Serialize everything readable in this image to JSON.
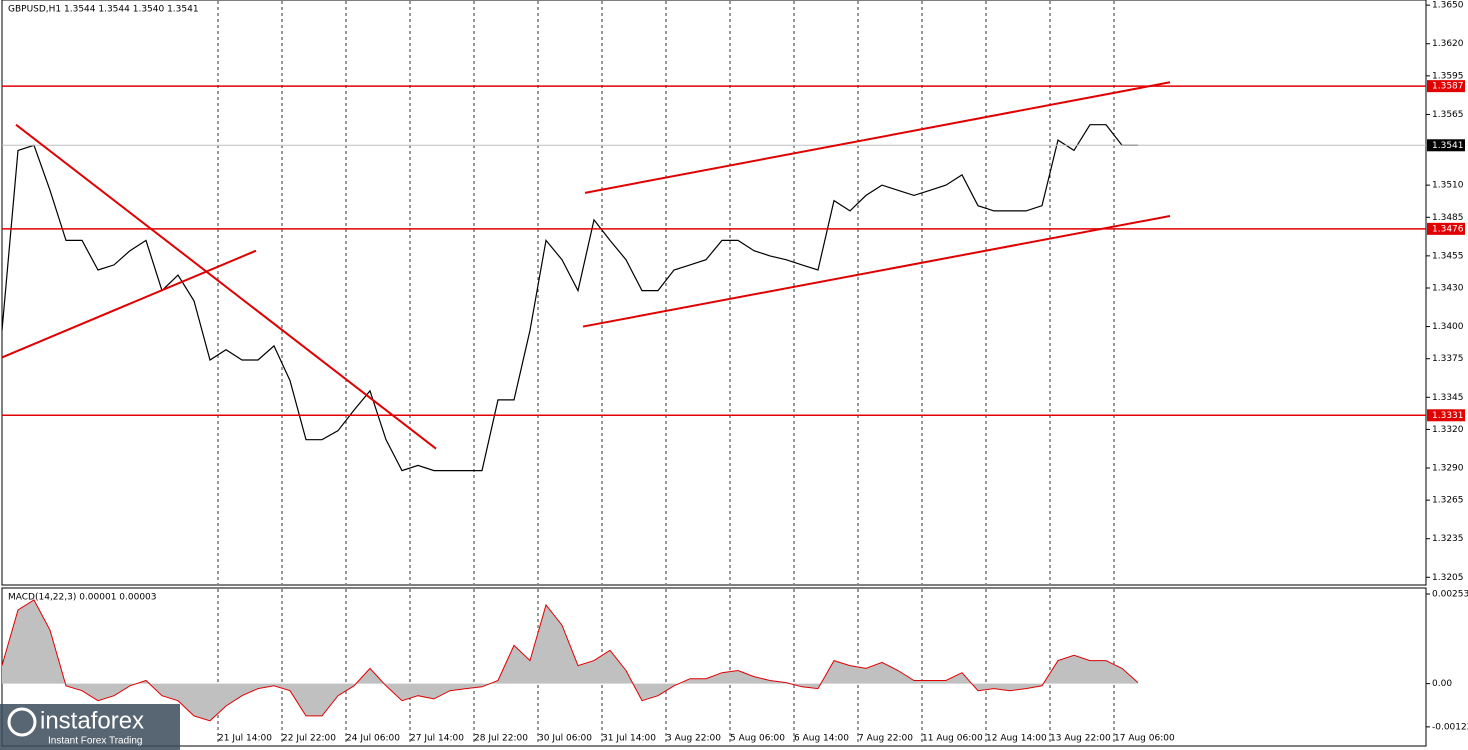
{
  "chart_data": [
    {
      "type": "line",
      "title": "GBPUSD,H1  1.3544 1.3544 1.3540 1.3541",
      "x": [
        0,
        8,
        16,
        24,
        32,
        40,
        48,
        56,
        64,
        72,
        80,
        88,
        96,
        104,
        112,
        120,
        128,
        136,
        144,
        152,
        160,
        168,
        176,
        184,
        192,
        200,
        208,
        216,
        224,
        232,
        240,
        248,
        256,
        264,
        272,
        280,
        288,
        296,
        304,
        312,
        320,
        328,
        336,
        344,
        352,
        360,
        368,
        376,
        384,
        392,
        400,
        408,
        416,
        424,
        432,
        440,
        448,
        456,
        464,
        472,
        480,
        488,
        496,
        504,
        512,
        520,
        528,
        536,
        544,
        552,
        560,
        568
      ],
      "series": [
        {
          "name": "GBPUSD",
          "color": "#000000",
          "values": [
            1.3397,
            1.3537,
            1.3541,
            1.3506,
            1.3467,
            1.3467,
            1.3444,
            1.3448,
            1.3459,
            1.3467,
            1.3428,
            1.344,
            1.342,
            1.3374,
            1.3382,
            1.3374,
            1.3374,
            1.3385,
            1.3358,
            1.3312,
            1.3312,
            1.3319,
            1.3335,
            1.335,
            1.3312,
            1.3288,
            1.3292,
            1.3288,
            1.3288,
            1.3288,
            1.3288,
            1.3343,
            1.3343,
            1.3397,
            1.3467,
            1.3452,
            1.3428,
            1.3483,
            1.3467,
            1.3452,
            1.3428,
            1.3428,
            1.3444,
            1.3448,
            1.3452,
            1.3467,
            1.3467,
            1.3459,
            1.3455,
            1.3452,
            1.3448,
            1.3444,
            1.3498,
            1.349,
            1.3502,
            1.351,
            1.3506,
            1.3502,
            1.3506,
            1.351,
            1.3518,
            1.3494,
            1.349,
            1.349,
            1.349,
            1.3494,
            1.3545,
            1.3537,
            1.3557,
            1.3557,
            1.3541,
            1.3541
          ]
        }
      ],
      "xlim": [
        0,
        712
      ],
      "ylim": [
        1.3199,
        1.3654
      ],
      "yticks": [
        {
          "value": 1.365,
          "label": "1.3650"
        },
        {
          "value": 1.362,
          "label": "1.3620"
        },
        {
          "value": 1.3595,
          "label": "1.3595"
        },
        {
          "value": 1.3565,
          "label": "1.3565"
        },
        {
          "value": 1.351,
          "label": "1.3510"
        },
        {
          "value": 1.3485,
          "label": "1.3485"
        },
        {
          "value": 1.3455,
          "label": "1.3455"
        },
        {
          "value": 1.343,
          "label": "1.3430"
        },
        {
          "value": 1.34,
          "label": "1.3400"
        },
        {
          "value": 1.3375,
          "label": "1.3375"
        },
        {
          "value": 1.3345,
          "label": "1.3345"
        },
        {
          "value": 1.332,
          "label": "1.3320"
        },
        {
          "value": 1.329,
          "label": "1.3290"
        },
        {
          "value": 1.3265,
          "label": "1.3265"
        },
        {
          "value": 1.3235,
          "label": "1.3235"
        },
        {
          "value": 1.3205,
          "label": "1.3205"
        }
      ],
      "levels": [
        {
          "value": 1.3587,
          "color": "#e00000"
        },
        {
          "value": 1.3476,
          "color": "#e00000"
        },
        {
          "value": 1.3331,
          "color": "#e00000"
        }
      ],
      "current_price": 1.3541,
      "trend_lines": [
        {
          "x": [
            7,
            217
          ],
          "y": [
            1.3557,
            1.3305
          ],
          "color": "#e00000"
        },
        {
          "x": [
            0,
            127
          ],
          "y": [
            1.3376,
            1.3459
          ],
          "color": "#e00000"
        },
        {
          "x": [
            291.5,
            584
          ],
          "y": [
            1.3504,
            1.359
          ],
          "color": "#e00000"
        },
        {
          "x": [
            290.5,
            584
          ],
          "y": [
            1.34,
            1.3486
          ],
          "color": "#e00000"
        }
      ]
    },
    {
      "type": "area",
      "title": "MACD(14,22,3) 0.00001 0.00003",
      "x": [
        0,
        8,
        16,
        24,
        32,
        40,
        48,
        56,
        64,
        72,
        80,
        88,
        96,
        104,
        112,
        120,
        128,
        136,
        144,
        152,
        160,
        168,
        176,
        184,
        192,
        200,
        208,
        216,
        224,
        232,
        240,
        248,
        256,
        264,
        272,
        280,
        288,
        296,
        304,
        312,
        320,
        328,
        336,
        344,
        352,
        360,
        368,
        376,
        384,
        392,
        400,
        408,
        416,
        424,
        432,
        440,
        448,
        456,
        464,
        472,
        480,
        488,
        496,
        504,
        512,
        520,
        528,
        536,
        544,
        552,
        560,
        568
      ],
      "series": [
        {
          "name": "MACD",
          "color": "#c0c0c0",
          "line_color": "#e00000",
          "values": [
            0.00051,
            0.00208,
            0.00236,
            0.00151,
            -6e-05,
            -0.0002,
            -0.00048,
            -0.00034,
            -6e-05,
            9e-05,
            -0.00034,
            -0.00048,
            -0.00091,
            -0.00105,
            -0.00063,
            -0.00034,
            -0.00014,
            -6e-05,
            -0.0002,
            -0.00091,
            -0.00091,
            -0.00034,
            -6e-05,
            0.00043,
            -6e-05,
            -0.00048,
            -0.00034,
            -0.00043,
            -0.0002,
            -0.00014,
            -9e-05,
            9e-05,
            0.00108,
            0.00065,
            0.00222,
            0.00165,
            0.00051,
            0.00065,
            0.00094,
            0.00037,
            -0.00048,
            -0.00034,
            -6e-05,
            0.00014,
            0.00014,
            0.00031,
            0.00037,
            0.0002,
            9e-05,
            3e-05,
            -9e-05,
            -0.00014,
            0.00065,
            0.00051,
            0.00043,
            0.0006,
            0.00037,
            9e-05,
            9e-05,
            9e-05,
            0.00031,
            -0.0002,
            -0.00014,
            -0.0002,
            -0.00014,
            -6e-05,
            0.00065,
            0.0008,
            0.00065,
            0.00065,
            0.00043,
            3e-05
          ]
        }
      ],
      "xlim": [
        0,
        712
      ],
      "ylim": [
        -0.00176,
        0.0027
      ],
      "yticks": [
        0.00253,
        {
          "value": 0,
          "label": "0.00"
        },
        -0.00122
      ],
      "xticks": [
        {
          "value": 108,
          "label": "21 Jul 14:00"
        },
        {
          "value": 140,
          "label": "22 Jul 22:00"
        },
        {
          "value": 172,
          "label": "24 Jul 06:00"
        },
        {
          "value": 204,
          "label": "27 Jul 14:00"
        },
        {
          "value": 236,
          "label": "28 Jul 22:00"
        },
        {
          "value": 268,
          "label": "30 Jul 06:00"
        },
        {
          "value": 300,
          "label": "31 Jul 14:00"
        },
        {
          "value": 332,
          "label": "3 Aug 22:00"
        },
        {
          "value": 364,
          "label": "5 Aug 06:00"
        },
        {
          "value": 396,
          "label": "6 Aug 14:00"
        },
        {
          "value": 428,
          "label": "7 Aug 22:00"
        },
        {
          "value": 460,
          "label": "11 Aug 06:00"
        },
        {
          "value": 492,
          "label": "12 Aug 14:00"
        },
        {
          "value": 524,
          "label": "13 Aug 22:00"
        },
        {
          "value": 556,
          "label": "17 Aug 06:00"
        }
      ]
    }
  ],
  "logo": {
    "name": "instaforex",
    "tagline": "Instant Forex Trading"
  }
}
